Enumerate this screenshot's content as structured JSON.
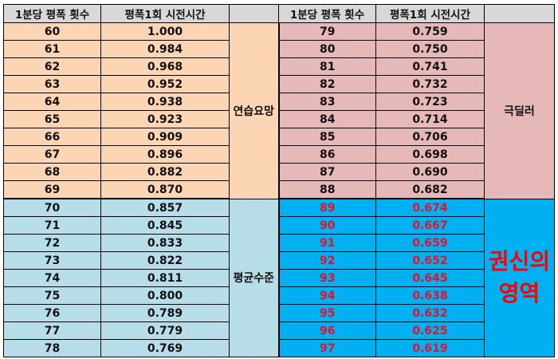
{
  "headers": {
    "count_left": "1분당 평폭 횟수",
    "time_left": "평폭1회 시전시간",
    "blank_left": "",
    "count_right": "1분당 평폭 횟수",
    "time_right": "평폭1회 시전시간",
    "blank_right": ""
  },
  "labels": {
    "practice": "연습요망",
    "dealer": "극딜러",
    "average": "평균수준",
    "master": "권신의 영역"
  },
  "rows": [
    {
      "l_count": "60",
      "l_time": "1.000",
      "r_count": "79",
      "r_time": "0.759"
    },
    {
      "l_count": "61",
      "l_time": "0.984",
      "r_count": "80",
      "r_time": "0.750"
    },
    {
      "l_count": "62",
      "l_time": "0.968",
      "r_count": "81",
      "r_time": "0.741"
    },
    {
      "l_count": "63",
      "l_time": "0.952",
      "r_count": "82",
      "r_time": "0.732"
    },
    {
      "l_count": "64",
      "l_time": "0.938",
      "r_count": "83",
      "r_time": "0.723"
    },
    {
      "l_count": "65",
      "l_time": "0.923",
      "r_count": "84",
      "r_time": "0.714"
    },
    {
      "l_count": "66",
      "l_time": "0.909",
      "r_count": "85",
      "r_time": "0.706"
    },
    {
      "l_count": "67",
      "l_time": "0.896",
      "r_count": "86",
      "r_time": "0.698"
    },
    {
      "l_count": "68",
      "l_time": "0.882",
      "r_count": "87",
      "r_time": "0.690"
    },
    {
      "l_count": "69",
      "l_time": "0.870",
      "r_count": "88",
      "r_time": "0.682"
    },
    {
      "l_count": "70",
      "l_time": "0.857",
      "r_count": "89",
      "r_time": "0.674"
    },
    {
      "l_count": "71",
      "l_time": "0.845",
      "r_count": "90",
      "r_time": "0.667"
    },
    {
      "l_count": "72",
      "l_time": "0.833",
      "r_count": "91",
      "r_time": "0.659"
    },
    {
      "l_count": "73",
      "l_time": "0.822",
      "r_count": "92",
      "r_time": "0.652"
    },
    {
      "l_count": "74",
      "l_time": "0.811",
      "r_count": "93",
      "r_time": "0.645"
    },
    {
      "l_count": "75",
      "l_time": "0.800",
      "r_count": "94",
      "r_time": "0.638"
    },
    {
      "l_count": "76",
      "l_time": "0.789",
      "r_count": "95",
      "r_time": "0.632"
    },
    {
      "l_count": "77",
      "l_time": "0.779",
      "r_count": "96",
      "r_time": "0.625"
    },
    {
      "l_count": "78",
      "l_time": "0.769",
      "r_count": "97",
      "r_time": "0.619"
    }
  ],
  "colors": {
    "orange": "#fcd5b4",
    "pink": "#e6b8b7",
    "light_blue": "#b7dde8",
    "cyan": "#00b0f0",
    "red_text": "#e8102a",
    "header_gray": "#d8d8d8"
  }
}
